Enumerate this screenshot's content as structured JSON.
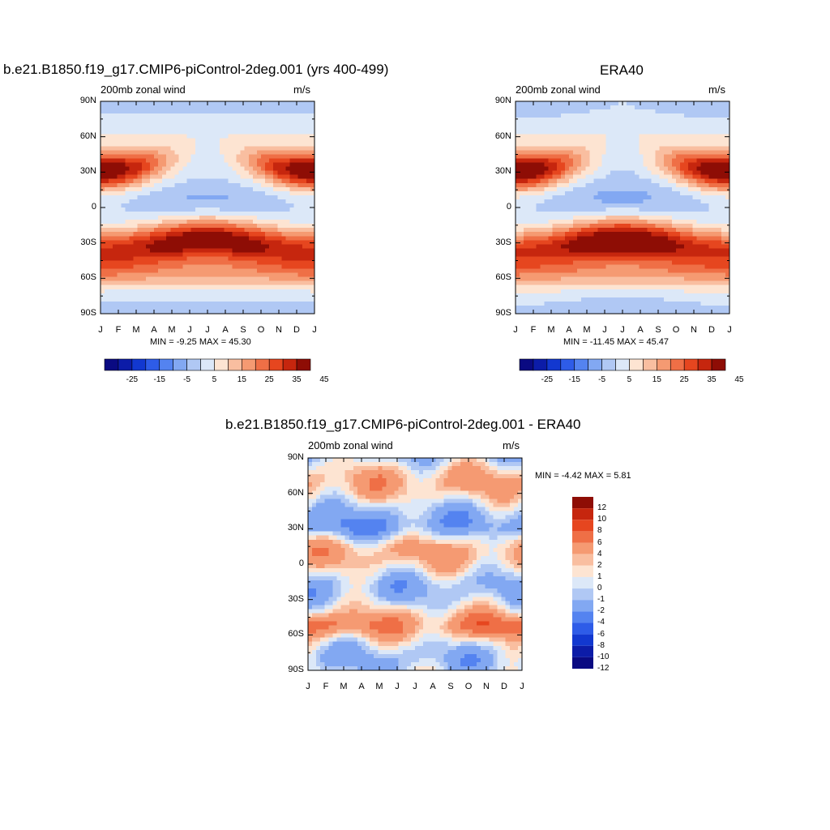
{
  "palette": {
    "full": [
      "#0a0a82",
      "#0c1ca8",
      "#1238d0",
      "#2e5ce8",
      "#5483f0",
      "#82a8f2",
      "#b0c8f4",
      "#dce8f8",
      "#fde4d2",
      "#f9bea0",
      "#f59a72",
      "#ef6f46",
      "#e6461f",
      "#c6260e",
      "#8e0d05"
    ],
    "diff": [
      "#0a0a82",
      "#0c1ca8",
      "#1238d0",
      "#2e5ce8",
      "#5483f0",
      "#82a8f2",
      "#b0c8f4",
      "#dce8f8",
      "#fde4d2",
      "#f9bea0",
      "#f59a72",
      "#ef6f46",
      "#e6461f",
      "#c6260e",
      "#8e0d05"
    ]
  },
  "chart_data": [
    {
      "type": "contour",
      "id": "model",
      "title": "b.e21.B1850.f19_g17.CMIP6-piControl-2deg.001 (yrs 400-499)",
      "left_label": "200mb zonal wind",
      "right_label": "m/s",
      "stats": "MIN =  -9.25 MAX =  45.30",
      "min": -9.25,
      "max": 45.3,
      "x_ticks": [
        "J",
        "F",
        "M",
        "A",
        "M",
        "J",
        "J",
        "A",
        "S",
        "O",
        "N",
        "D",
        "J"
      ],
      "y_ticks": [
        "90N",
        "60N",
        "30N",
        "0",
        "30S",
        "60S",
        "90S"
      ],
      "ylim": [
        -90,
        90
      ],
      "levels": [
        -30,
        -25,
        -20,
        -15,
        -10,
        -5,
        0,
        5,
        10,
        15,
        20,
        25,
        30,
        35,
        40,
        45
      ],
      "colorbar_labels": [
        "-25",
        "-15",
        "-5",
        "5",
        "15",
        "25",
        "35",
        "45"
      ]
    },
    {
      "type": "contour",
      "id": "obs",
      "title": "ERA40",
      "left_label": "200mb zonal wind",
      "right_label": "m/s",
      "stats": "MIN = -11.45 MAX =  45.47",
      "min": -11.45,
      "max": 45.47,
      "x_ticks": [
        "J",
        "F",
        "M",
        "A",
        "M",
        "J",
        "J",
        "A",
        "S",
        "O",
        "N",
        "D",
        "J"
      ],
      "y_ticks": [
        "90N",
        "60N",
        "30N",
        "0",
        "30S",
        "60S",
        "90S"
      ],
      "ylim": [
        -90,
        90
      ],
      "levels": [
        -30,
        -25,
        -20,
        -15,
        -10,
        -5,
        0,
        5,
        10,
        15,
        20,
        25,
        30,
        35,
        40,
        45
      ],
      "colorbar_labels": [
        "-25",
        "-15",
        "-5",
        "5",
        "15",
        "25",
        "35",
        "45"
      ]
    },
    {
      "type": "contour",
      "id": "diff",
      "title": "b.e21.B1850.f19_g17.CMIP6-piControl-2deg.001 - ERA40",
      "left_label": "200mb zonal wind",
      "right_label": "m/s",
      "stats": "MIN =  -4.42 MAX =   5.81",
      "min": -4.42,
      "max": 5.81,
      "x_ticks": [
        "J",
        "F",
        "M",
        "A",
        "M",
        "J",
        "J",
        "A",
        "S",
        "O",
        "N",
        "D",
        "J"
      ],
      "y_ticks": [
        "90N",
        "60N",
        "30N",
        "0",
        "30S",
        "60S",
        "90S"
      ],
      "ylim": [
        -90,
        90
      ],
      "levels": [
        -12,
        -10,
        -8,
        -6,
        -4,
        -2,
        -1,
        0,
        1,
        2,
        4,
        6,
        8,
        10,
        12
      ],
      "colorbar_labels": [
        "12",
        "10",
        "8",
        "6",
        "4",
        "2",
        "1",
        "0",
        "-1",
        "-2",
        "-4",
        "-6",
        "-8",
        "-10",
        "-12"
      ]
    }
  ]
}
